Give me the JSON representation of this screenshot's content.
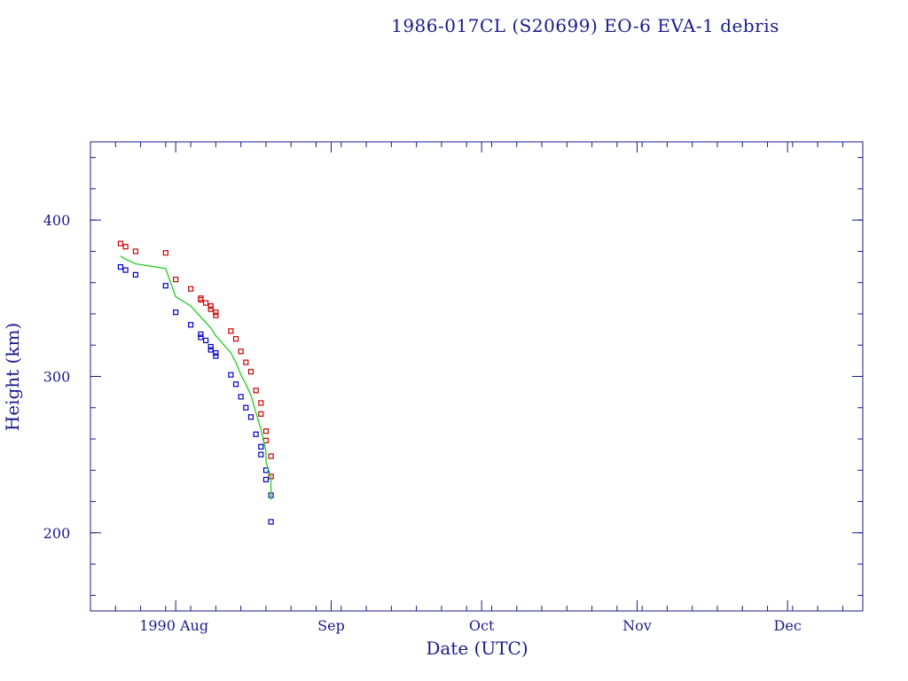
{
  "chart_data": {
    "type": "scatter",
    "title": "1986-017CL (S20699) EO-6 EVA-1 debris",
    "xlabel": "Date (UTC)",
    "ylabel": "Height (km)",
    "x_unit": "date",
    "xlim": [
      "1990-07-15",
      "1990-12-16"
    ],
    "ylim": [
      150,
      450
    ],
    "x_tick_labels": [
      {
        "date": "1990-08-01",
        "label": "1990 Aug"
      },
      {
        "date": "1990-09-01",
        "label": "Sep"
      },
      {
        "date": "1990-10-01",
        "label": "Oct"
      },
      {
        "date": "1990-11-01",
        "label": "Nov"
      },
      {
        "date": "1990-12-01",
        "label": "Dec"
      }
    ],
    "y_ticks": [
      200,
      300,
      400
    ],
    "grid": false,
    "colors": {
      "axis": "#1a1a8c",
      "apogee": "#cc0000",
      "perigee": "#0000cc",
      "mean": "#22cc22"
    },
    "series": [
      {
        "key": "apogee",
        "marker": "square",
        "points": [
          [
            "1990-07-21",
            385
          ],
          [
            "1990-07-22",
            383
          ],
          [
            "1990-07-24",
            380
          ],
          [
            "1990-07-30",
            379
          ],
          [
            "1990-08-01",
            362
          ],
          [
            "1990-08-04",
            356
          ],
          [
            "1990-08-06",
            350
          ],
          [
            "1990-08-06",
            349
          ],
          [
            "1990-08-07",
            347
          ],
          [
            "1990-08-08",
            345
          ],
          [
            "1990-08-08",
            343
          ],
          [
            "1990-08-09",
            341
          ],
          [
            "1990-08-09",
            339
          ],
          [
            "1990-08-12",
            329
          ],
          [
            "1990-08-13",
            324
          ],
          [
            "1990-08-14",
            316
          ],
          [
            "1990-08-15",
            309
          ],
          [
            "1990-08-16",
            303
          ],
          [
            "1990-08-17",
            291
          ],
          [
            "1990-08-18",
            283
          ],
          [
            "1990-08-18",
            276
          ],
          [
            "1990-08-19",
            265
          ],
          [
            "1990-08-19",
            259
          ],
          [
            "1990-08-20",
            249
          ],
          [
            "1990-08-20",
            236
          ]
        ]
      },
      {
        "key": "perigee",
        "marker": "square",
        "points": [
          [
            "1990-07-21",
            370
          ],
          [
            "1990-07-22",
            368
          ],
          [
            "1990-07-24",
            365
          ],
          [
            "1990-07-30",
            358
          ],
          [
            "1990-08-01",
            341
          ],
          [
            "1990-08-04",
            333
          ],
          [
            "1990-08-06",
            327
          ],
          [
            "1990-08-06",
            325
          ],
          [
            "1990-08-07",
            323
          ],
          [
            "1990-08-08",
            319
          ],
          [
            "1990-08-08",
            317
          ],
          [
            "1990-08-09",
            315
          ],
          [
            "1990-08-09",
            313
          ],
          [
            "1990-08-12",
            301
          ],
          [
            "1990-08-13",
            295
          ],
          [
            "1990-08-14",
            287
          ],
          [
            "1990-08-15",
            280
          ],
          [
            "1990-08-16",
            274
          ],
          [
            "1990-08-17",
            263
          ],
          [
            "1990-08-18",
            255
          ],
          [
            "1990-08-18",
            250
          ],
          [
            "1990-08-19",
            240
          ],
          [
            "1990-08-19",
            234
          ],
          [
            "1990-08-20",
            224
          ],
          [
            "1990-08-20",
            207
          ]
        ]
      },
      {
        "key": "mean",
        "marker": "line",
        "points": [
          [
            "1990-07-21",
            377
          ],
          [
            "1990-07-22",
            375
          ],
          [
            "1990-07-24",
            372
          ],
          [
            "1990-07-30",
            369
          ],
          [
            "1990-08-01",
            351
          ],
          [
            "1990-08-04",
            345
          ],
          [
            "1990-08-06",
            338
          ],
          [
            "1990-08-08",
            331
          ],
          [
            "1990-08-09",
            326
          ],
          [
            "1990-08-12",
            315
          ],
          [
            "1990-08-13",
            309
          ],
          [
            "1990-08-14",
            301
          ],
          [
            "1990-08-15",
            295
          ],
          [
            "1990-08-16",
            288
          ],
          [
            "1990-08-17",
            277
          ],
          [
            "1990-08-18",
            266
          ],
          [
            "1990-08-19",
            252
          ],
          [
            "1990-08-19",
            245
          ],
          [
            "1990-08-20",
            236
          ],
          [
            "1990-08-20",
            221
          ]
        ]
      }
    ]
  }
}
